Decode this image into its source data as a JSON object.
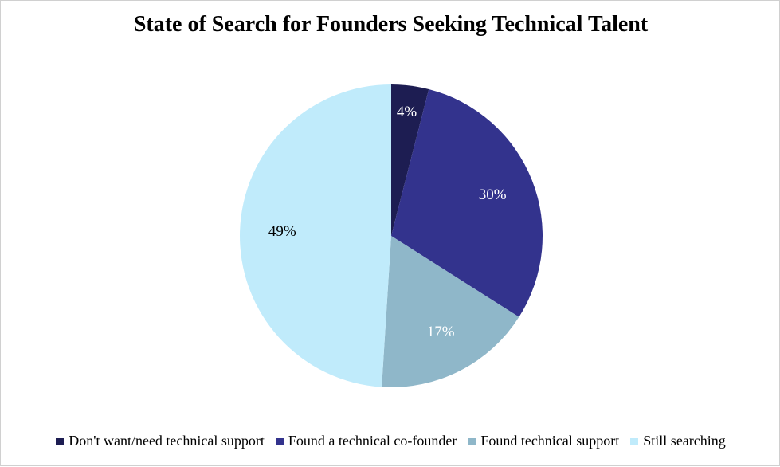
{
  "chart_data": {
    "type": "pie",
    "title": "State of Search for Founders Seeking Technical Talent",
    "legend_position": "bottom",
    "slices": [
      {
        "label": "Don't want/need technical support",
        "value": 4,
        "display": "4%",
        "color": "#1d1d52"
      },
      {
        "label": "Found a technical co-founder",
        "value": 30,
        "display": "30%",
        "color": "#33338d"
      },
      {
        "label": "Found technical support",
        "value": 17,
        "display": "17%",
        "color": "#8fb7c9"
      },
      {
        "label": "Still searching",
        "value": 49,
        "display": "49%",
        "color": "#c0ebfb"
      }
    ]
  }
}
